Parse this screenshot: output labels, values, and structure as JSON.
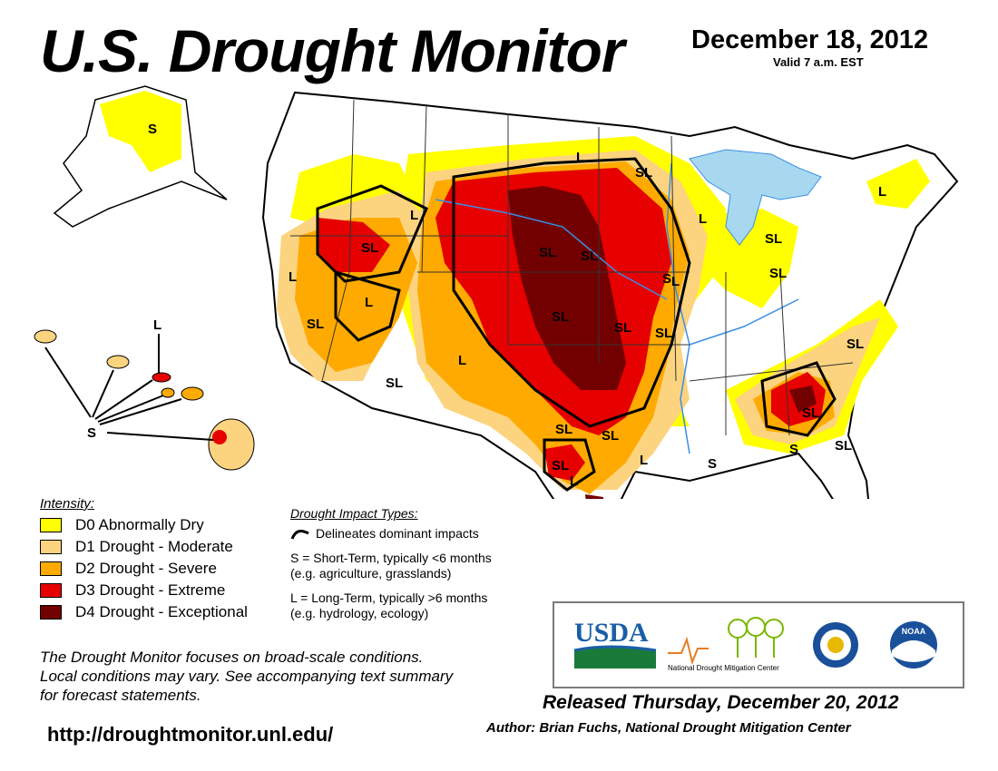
{
  "header": {
    "title": "U.S. Drought Monitor",
    "date": "December 18, 2012",
    "valid": "Valid 7 a.m. EST"
  },
  "legend": {
    "heading": "Intensity:",
    "items": [
      {
        "label": "D0 Abnormally Dry",
        "color": "#ffff00"
      },
      {
        "label": "D1 Drought - Moderate",
        "color": "#fcd37f"
      },
      {
        "label": "D2 Drought - Severe",
        "color": "#ffaa00"
      },
      {
        "label": "D3 Drought - Extreme",
        "color": "#e60000"
      },
      {
        "label": "D4 Drought - Exceptional",
        "color": "#730000"
      }
    ]
  },
  "impacts": {
    "heading": "Drought Impact Types:",
    "delineates": "Delineates dominant impacts",
    "short_term": "S = Short-Term, typically <6 months",
    "short_examples": "(e.g. agriculture, grasslands)",
    "long_term": "L = Long-Term, typically >6 months",
    "long_examples": "(e.g. hydrology, ecology)"
  },
  "note": {
    "line1": "The Drought Monitor focuses on broad-scale conditions.",
    "line2": "Local conditions may vary. See accompanying text summary",
    "line3": "for forecast statements."
  },
  "url": "http://droughtmonitor.unl.edu/",
  "logos": {
    "usda": "USDA",
    "ndmc_line": "National   Drought Mitigation Center",
    "noaa": "NOAA"
  },
  "footer": {
    "released": "Released Thursday, December 20, 2012",
    "author": "Author: Brian Fuchs, National Drought Mitigation Center"
  },
  "map_labels": {
    "alaska": "S",
    "hawaii_s": "S",
    "hawaii_l": "L",
    "conus": [
      "SL",
      "L",
      "L",
      "SL",
      "L",
      "SL",
      "L",
      "SL",
      "L",
      "SL",
      "SL",
      "L",
      "SL",
      "SL",
      "SL",
      "SL",
      "L",
      "SL",
      "SL",
      "SL",
      "SL",
      "SL",
      "L",
      "L",
      "SL",
      "L",
      "S",
      "S",
      "SL",
      "S"
    ]
  },
  "colors": {
    "d0": "#ffff00",
    "d1": "#fcd37f",
    "d2": "#ffaa00",
    "d3": "#e60000",
    "d4": "#730000",
    "water": "#a8d8f0",
    "river": "#3a8ee6",
    "border": "#000000"
  }
}
